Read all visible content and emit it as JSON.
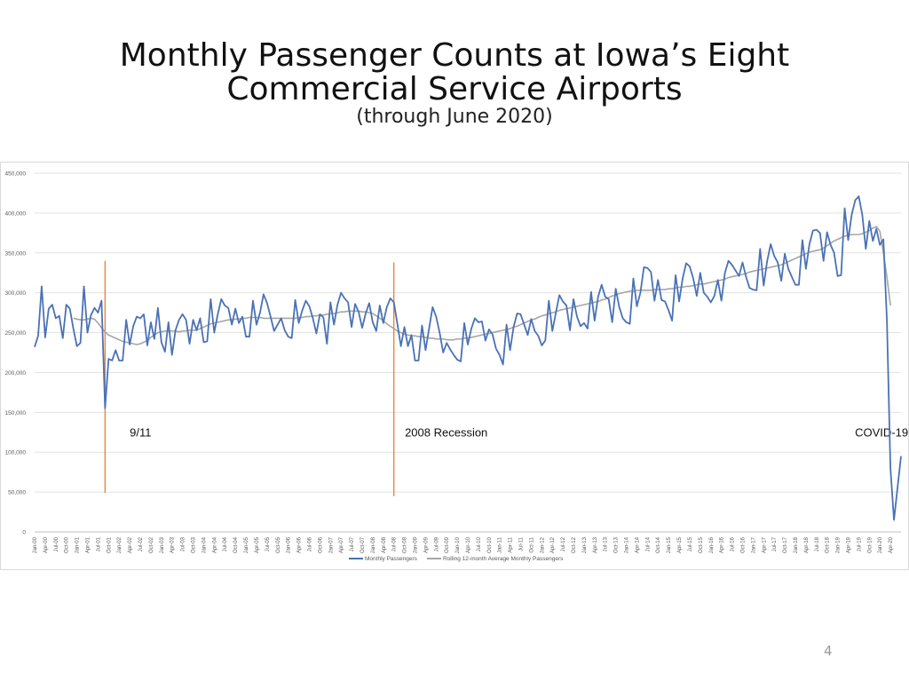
{
  "slide": {
    "title_line1": "Monthly Passenger Counts at Iowa’s Eight",
    "title_line2": "Commercial Service Airports",
    "subtitle": "(through June 2020)",
    "page_number": "4"
  },
  "colors": {
    "monthly": "#4a72b5",
    "rolling": "#a6a6a6",
    "event_line": "#ed7d31",
    "grid": "#e3e3e3",
    "axis_text": "#595959"
  },
  "chart_data": {
    "type": "line",
    "title": "",
    "xlabel": "",
    "ylabel": "",
    "ylim": [
      0,
      450000
    ],
    "yticks": [
      "0",
      "50,000",
      "100,000",
      "150,000",
      "200,000",
      "250,000",
      "300,000",
      "350,000",
      "400,000",
      "450,000"
    ],
    "ytick_values": [
      0,
      50000,
      100000,
      150000,
      200000,
      250000,
      300000,
      350000,
      400000,
      450000
    ],
    "grid": "horizontal",
    "legend_position": "bottom",
    "x_start": "Jan-00",
    "x_end": "Jun-20",
    "xtick_labels": [
      "Jan-00",
      "Apr-00",
      "Jul-00",
      "Oct-00",
      "Jan-01",
      "Apr-01",
      "Jul-01",
      "Oct-01",
      "Jan-02",
      "Apr-02",
      "Jul-02",
      "Oct-02",
      "Jan-03",
      "Apr-03",
      "Jul-03",
      "Oct-03",
      "Jan-04",
      "Apr-04",
      "Jul-04",
      "Oct-04",
      "Jan-05",
      "Apr-05",
      "Jul-05",
      "Oct-05",
      "Jan-06",
      "Apr-06",
      "Jul-06",
      "Oct-06",
      "Jan-07",
      "Apr-07",
      "Jul-07",
      "Oct-07",
      "Jan-08",
      "Apr-08",
      "Jul-08",
      "Oct-08",
      "Jan-09",
      "Apr-09",
      "Jul-09",
      "Oct-09",
      "Jan-10",
      "Apr-10",
      "Jul-10",
      "Oct-10",
      "Jan-11",
      "Apr-11",
      "Jul-11",
      "Oct-11",
      "Jan-12",
      "Apr-12",
      "Jul-12",
      "Oct-12",
      "Jan-13",
      "Apr-13",
      "Jul-13",
      "Oct-13",
      "Jan-14",
      "Apr-14",
      "Jul-14",
      "Oct-14",
      "Jan-15",
      "Apr-15",
      "Jul-15",
      "Oct-15",
      "Jan-16",
      "Apr-16",
      "Jul-16",
      "Oct-16",
      "Jan-17",
      "Apr-17",
      "Jul-17",
      "Oct-17",
      "Jan-18",
      "Apr-18",
      "Jul-18",
      "Oct-18",
      "Jan-19",
      "Apr-19",
      "Jul-19",
      "Oct-19",
      "Jan-20",
      "Apr-20"
    ],
    "series": [
      {
        "name": "Monthly Passengers",
        "values": [
          232000,
          246000,
          308000,
          244000,
          280000,
          285000,
          268000,
          271000,
          243000,
          285000,
          280000,
          255000,
          233000,
          237000,
          308000,
          250000,
          272000,
          281000,
          275000,
          290000,
          155000,
          217000,
          215000,
          228000,
          215000,
          215000,
          266000,
          235000,
          258000,
          270000,
          268000,
          273000,
          234000,
          263000,
          242000,
          281000,
          238000,
          226000,
          263000,
          222000,
          253000,
          266000,
          273000,
          266000,
          236000,
          266000,
          253000,
          268000,
          238000,
          239000,
          292000,
          250000,
          273000,
          292000,
          284000,
          281000,
          260000,
          280000,
          262000,
          270000,
          245000,
          245000,
          290000,
          260000,
          275000,
          298000,
          287000,
          270000,
          252000,
          260000,
          268000,
          253000,
          245000,
          243000,
          291000,
          262000,
          278000,
          290000,
          283000,
          268000,
          249000,
          273000,
          269000,
          236000,
          288000,
          260000,
          285000,
          300000,
          293000,
          288000,
          257000,
          286000,
          276000,
          256000,
          274000,
          287000,
          263000,
          252000,
          284000,
          262000,
          282000,
          293000,
          288000,
          261000,
          233000,
          257000,
          233000,
          247000,
          215000,
          215000,
          259000,
          228000,
          255000,
          282000,
          270000,
          250000,
          225000,
          237000,
          229000,
          222000,
          216000,
          214000,
          262000,
          235000,
          255000,
          268000,
          263000,
          264000,
          240000,
          254000,
          248000,
          230000,
          222000,
          210000,
          260000,
          228000,
          257000,
          274000,
          273000,
          260000,
          247000,
          267000,
          252000,
          246000,
          234000,
          240000,
          290000,
          252000,
          275000,
          297000,
          289000,
          284000,
          253000,
          292000,
          270000,
          258000,
          262000,
          255000,
          301000,
          265000,
          295000,
          310000,
          295000,
          292000,
          263000,
          305000,
          282000,
          268000,
          263000,
          261000,
          318000,
          283000,
          300000,
          332000,
          331000,
          326000,
          290000,
          316000,
          291000,
          289000,
          278000,
          265000,
          322000,
          289000,
          318000,
          337000,
          333000,
          318000,
          296000,
          325000,
          300000,
          295000,
          288000,
          296000,
          316000,
          290000,
          325000,
          340000,
          335000,
          328000,
          321000,
          338000,
          320000,
          306000,
          304000,
          303000,
          355000,
          309000,
          340000,
          361000,
          346000,
          338000,
          315000,
          349000,
          330000,
          320000,
          310000,
          310000,
          366000,
          330000,
          361000,
          378000,
          379000,
          375000,
          340000,
          376000,
          360000,
          350000,
          321000,
          322000,
          406000,
          366000,
          398000,
          416000,
          421000,
          398000,
          355000,
          390000,
          365000,
          380000,
          360000,
          367000,
          265000,
          80000,
          15000,
          55000,
          95000
        ],
        "color": "#4a72b5"
      },
      {
        "name": "Rolling 12-month Average Monthly Passengers",
        "start_index": 11,
        "values": [
          268000,
          267000,
          266000,
          266000,
          267000,
          268000,
          267000,
          262000,
          256000,
          251000,
          247000,
          245000,
          243000,
          241000,
          239000,
          238000,
          237000,
          236000,
          235000,
          236000,
          238000,
          240000,
          244000,
          247000,
          250000,
          251000,
          252000,
          252000,
          252000,
          252000,
          251000,
          252000,
          252000,
          253000,
          253000,
          253000,
          255000,
          257000,
          259000,
          261000,
          262000,
          263000,
          264000,
          265000,
          266000,
          266000,
          267000,
          267000,
          268000,
          268000,
          269000,
          269000,
          269000,
          269000,
          268000,
          268000,
          268000,
          268000,
          268000,
          268000,
          268000,
          268000,
          268000,
          268000,
          269000,
          269000,
          270000,
          270000,
          271000,
          271000,
          272000,
          272000,
          273000,
          274000,
          274000,
          275000,
          276000,
          276000,
          277000,
          277000,
          277000,
          277000,
          276000,
          276000,
          275000,
          274000,
          271000,
          268000,
          265000,
          261000,
          258000,
          255000,
          252000,
          250000,
          248000,
          247000,
          246000,
          246000,
          245000,
          245000,
          244000,
          243000,
          243000,
          242000,
          242000,
          242000,
          241000,
          241000,
          241000,
          242000,
          242000,
          243000,
          243000,
          244000,
          245000,
          246000,
          247000,
          248000,
          249000,
          250000,
          251000,
          252000,
          253000,
          254000,
          255000,
          257000,
          258000,
          260000,
          262000,
          264000,
          266000,
          267000,
          269000,
          271000,
          272000,
          274000,
          275000,
          276000,
          278000,
          279000,
          280000,
          281000,
          282000,
          283000,
          284000,
          285000,
          286000,
          287000,
          288000,
          289000,
          291000,
          292000,
          294000,
          296000,
          297000,
          299000,
          300000,
          301000,
          302000,
          302000,
          303000,
          303000,
          303000,
          303000,
          303000,
          304000,
          304000,
          304000,
          304000,
          305000,
          305000,
          306000,
          307000,
          307000,
          308000,
          308000,
          309000,
          310000,
          311000,
          311000,
          312000,
          313000,
          314000,
          315000,
          316000,
          317000,
          319000,
          320000,
          321000,
          322000,
          323000,
          324000,
          326000,
          327000,
          328000,
          329000,
          330000,
          331000,
          332000,
          333000,
          334000,
          335000,
          337000,
          339000,
          341000,
          343000,
          345000,
          347000,
          349000,
          351000,
          352000,
          353000,
          354000,
          356000,
          359000,
          362000,
          365000,
          367000,
          369000,
          371000,
          372000,
          373000,
          373000,
          373000,
          374000,
          376000,
          378000,
          381000,
          383000,
          377000,
          350000,
          320000,
          284000
        ],
        "color": "#a6a6a6"
      }
    ],
    "events": [
      {
        "label": "9/11",
        "index": 20,
        "y_top": 340000,
        "y_bottom": 49000
      },
      {
        "label": "2008 Recession",
        "index": 102,
        "y_top": 338000,
        "y_bottom": 45000
      },
      {
        "label": "COVID-19",
        "index": 243
      }
    ]
  }
}
